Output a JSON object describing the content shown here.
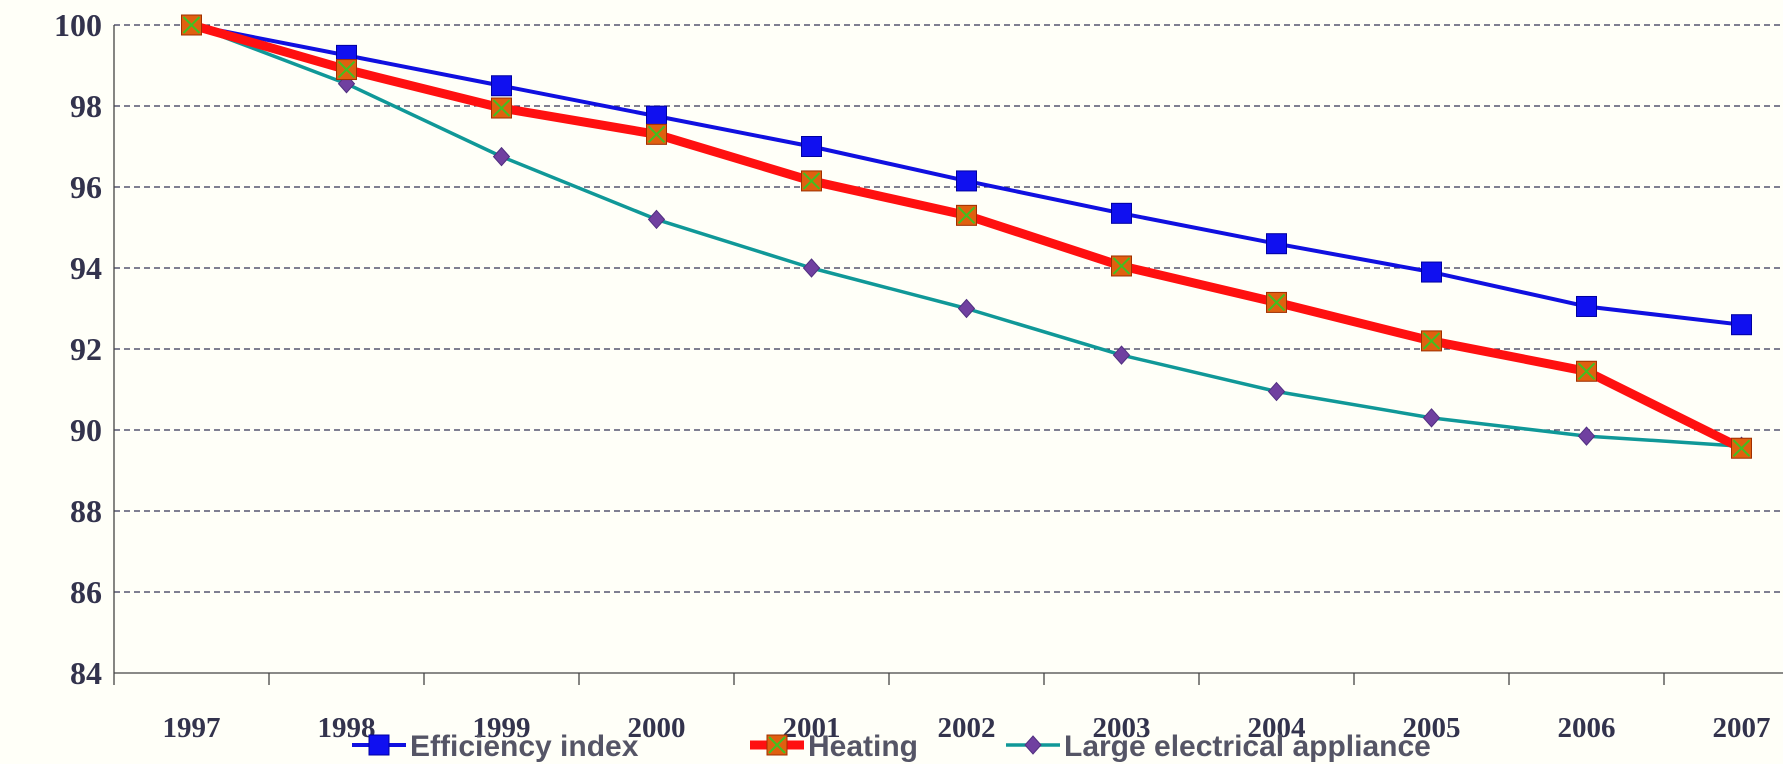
{
  "chart_data": {
    "type": "line",
    "categories": [
      "1997",
      "1998",
      "1999",
      "2000",
      "2001",
      "2002",
      "2003",
      "2004",
      "2005",
      "2006",
      "2007"
    ],
    "series": [
      {
        "name": "Efficiency index",
        "color": "#1010e0",
        "values": [
          100,
          99.25,
          98.5,
          97.75,
          97.0,
          96.15,
          95.35,
          94.6,
          93.9,
          93.05,
          92.6
        ]
      },
      {
        "name": "Heating",
        "color": "#ff1010",
        "values": [
          100,
          98.9,
          97.95,
          97.3,
          96.15,
          95.3,
          94.05,
          93.15,
          92.2,
          91.45,
          89.55
        ]
      },
      {
        "name": "Large electrical appliance",
        "color": "#109898",
        "values": [
          100,
          98.55,
          96.75,
          95.2,
          94.0,
          93.0,
          91.85,
          90.95,
          90.3,
          89.85,
          89.6
        ]
      }
    ],
    "ylim": [
      84,
      100
    ],
    "yticks": [
      84,
      86,
      88,
      90,
      92,
      94,
      96,
      98,
      100
    ],
    "grid": true,
    "legend": "bottom"
  }
}
